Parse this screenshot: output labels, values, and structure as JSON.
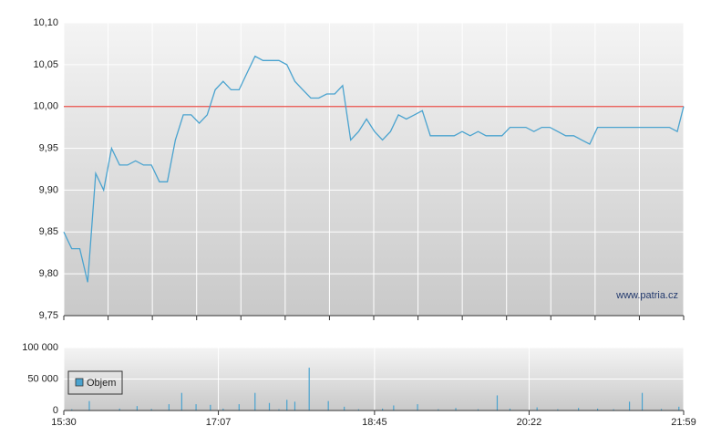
{
  "chart_data": [
    {
      "type": "line",
      "color": "#4aa3cf",
      "x": [
        "15:30",
        "15:35",
        "15:40",
        "15:45",
        "15:50",
        "15:55",
        "16:00",
        "16:05",
        "16:10",
        "16:15",
        "16:20",
        "16:25",
        "16:30",
        "16:35",
        "16:40",
        "16:45",
        "16:50",
        "16:55",
        "17:00",
        "17:05",
        "17:10",
        "17:15",
        "17:20",
        "17:25",
        "17:30",
        "17:35",
        "17:40",
        "17:45",
        "17:50",
        "17:55",
        "18:00",
        "18:05",
        "18:10",
        "18:15",
        "18:20",
        "18:25",
        "18:30",
        "18:35",
        "18:40",
        "18:45",
        "18:50",
        "18:55",
        "19:00",
        "19:05",
        "19:10",
        "19:15",
        "19:20",
        "19:25",
        "19:30",
        "19:35",
        "19:40",
        "19:45",
        "19:50",
        "19:55",
        "20:00",
        "20:05",
        "20:10",
        "20:15",
        "20:20",
        "20:25",
        "20:30",
        "20:35",
        "20:40",
        "20:45",
        "20:50",
        "20:55",
        "21:00",
        "21:05",
        "21:10",
        "21:15",
        "21:20",
        "21:25",
        "21:30",
        "21:35",
        "21:40",
        "21:45",
        "21:50",
        "21:55",
        "21:59"
      ],
      "values": [
        9.85,
        9.83,
        9.83,
        9.79,
        9.92,
        9.9,
        9.95,
        9.93,
        9.93,
        9.935,
        9.93,
        9.93,
        9.91,
        9.91,
        9.96,
        9.99,
        9.99,
        9.98,
        9.99,
        10.02,
        10.03,
        10.02,
        10.02,
        10.04,
        10.06,
        10.055,
        10.055,
        10.055,
        10.05,
        10.03,
        10.02,
        10.01,
        10.01,
        10.015,
        10.015,
        10.025,
        9.96,
        9.97,
        9.985,
        9.97,
        9.96,
        9.97,
        9.99,
        9.985,
        9.99,
        9.995,
        9.965,
        9.965,
        9.965,
        9.965,
        9.97,
        9.965,
        9.97,
        9.965,
        9.965,
        9.965,
        9.975,
        9.975,
        9.975,
        9.97,
        9.975,
        9.975,
        9.97,
        9.965,
        9.965,
        9.96,
        9.955,
        9.975,
        9.975,
        9.975,
        9.975,
        9.975,
        9.975,
        9.975,
        9.975,
        9.975,
        9.975,
        9.97,
        10.0
      ],
      "xlim": [
        "15:30",
        "21:59"
      ],
      "ylim": [
        9.75,
        10.1
      ],
      "yticks": [
        {
          "value": 9.75,
          "label": "9,75"
        },
        {
          "value": 9.8,
          "label": "9,80"
        },
        {
          "value": 9.85,
          "label": "9,85"
        },
        {
          "value": 9.9,
          "label": "9,90"
        },
        {
          "value": 9.95,
          "label": "9,95"
        },
        {
          "value": 10.0,
          "label": "10,00"
        },
        {
          "value": 10.05,
          "label": "10,05"
        },
        {
          "value": 10.1,
          "label": "10,10"
        }
      ],
      "grid": true,
      "hline": 10.0,
      "hline_color": "#e8504a",
      "annotation": "www.patria.cz"
    },
    {
      "type": "bar",
      "x": [
        "15:35",
        "15:46",
        "16:05",
        "16:16",
        "16:25",
        "16:36",
        "16:44",
        "16:53",
        "17:02",
        "17:10",
        "17:20",
        "17:30",
        "17:39",
        "17:45",
        "17:50",
        "17:55",
        "18:04",
        "18:16",
        "18:26",
        "18:35",
        "18:50",
        "18:57",
        "19:12",
        "19:25",
        "19:36",
        "19:50",
        "20:02",
        "20:10",
        "20:27",
        "20:40",
        "20:53",
        "21:05",
        "21:15",
        "21:25",
        "21:33",
        "21:45",
        "21:56"
      ],
      "series": [
        {
          "name": "Objem",
          "color": "#4aa3cf",
          "values": [
            2000,
            15000,
            3000,
            7000,
            2500,
            10000,
            28000,
            10000,
            9000,
            3000,
            10000,
            28000,
            12000,
            2000,
            17000,
            14000,
            68000,
            15000,
            6000,
            2000,
            3000,
            8000,
            10000,
            2000,
            4000,
            2000,
            24000,
            3000,
            5000,
            2000,
            4000,
            3000,
            2000,
            14000,
            28000,
            2500,
            6000
          ]
        }
      ],
      "xlim": [
        "15:30",
        "21:59"
      ],
      "xticks": [
        "15:30",
        "17:07",
        "18:45",
        "20:22",
        "21:59"
      ],
      "ylim": [
        0,
        100000
      ],
      "yticks": [
        0,
        {
          "value": 50000,
          "label": "50 000"
        },
        {
          "value": 100000,
          "label": "100 000"
        }
      ],
      "grid": true,
      "legend": "upper left"
    }
  ]
}
